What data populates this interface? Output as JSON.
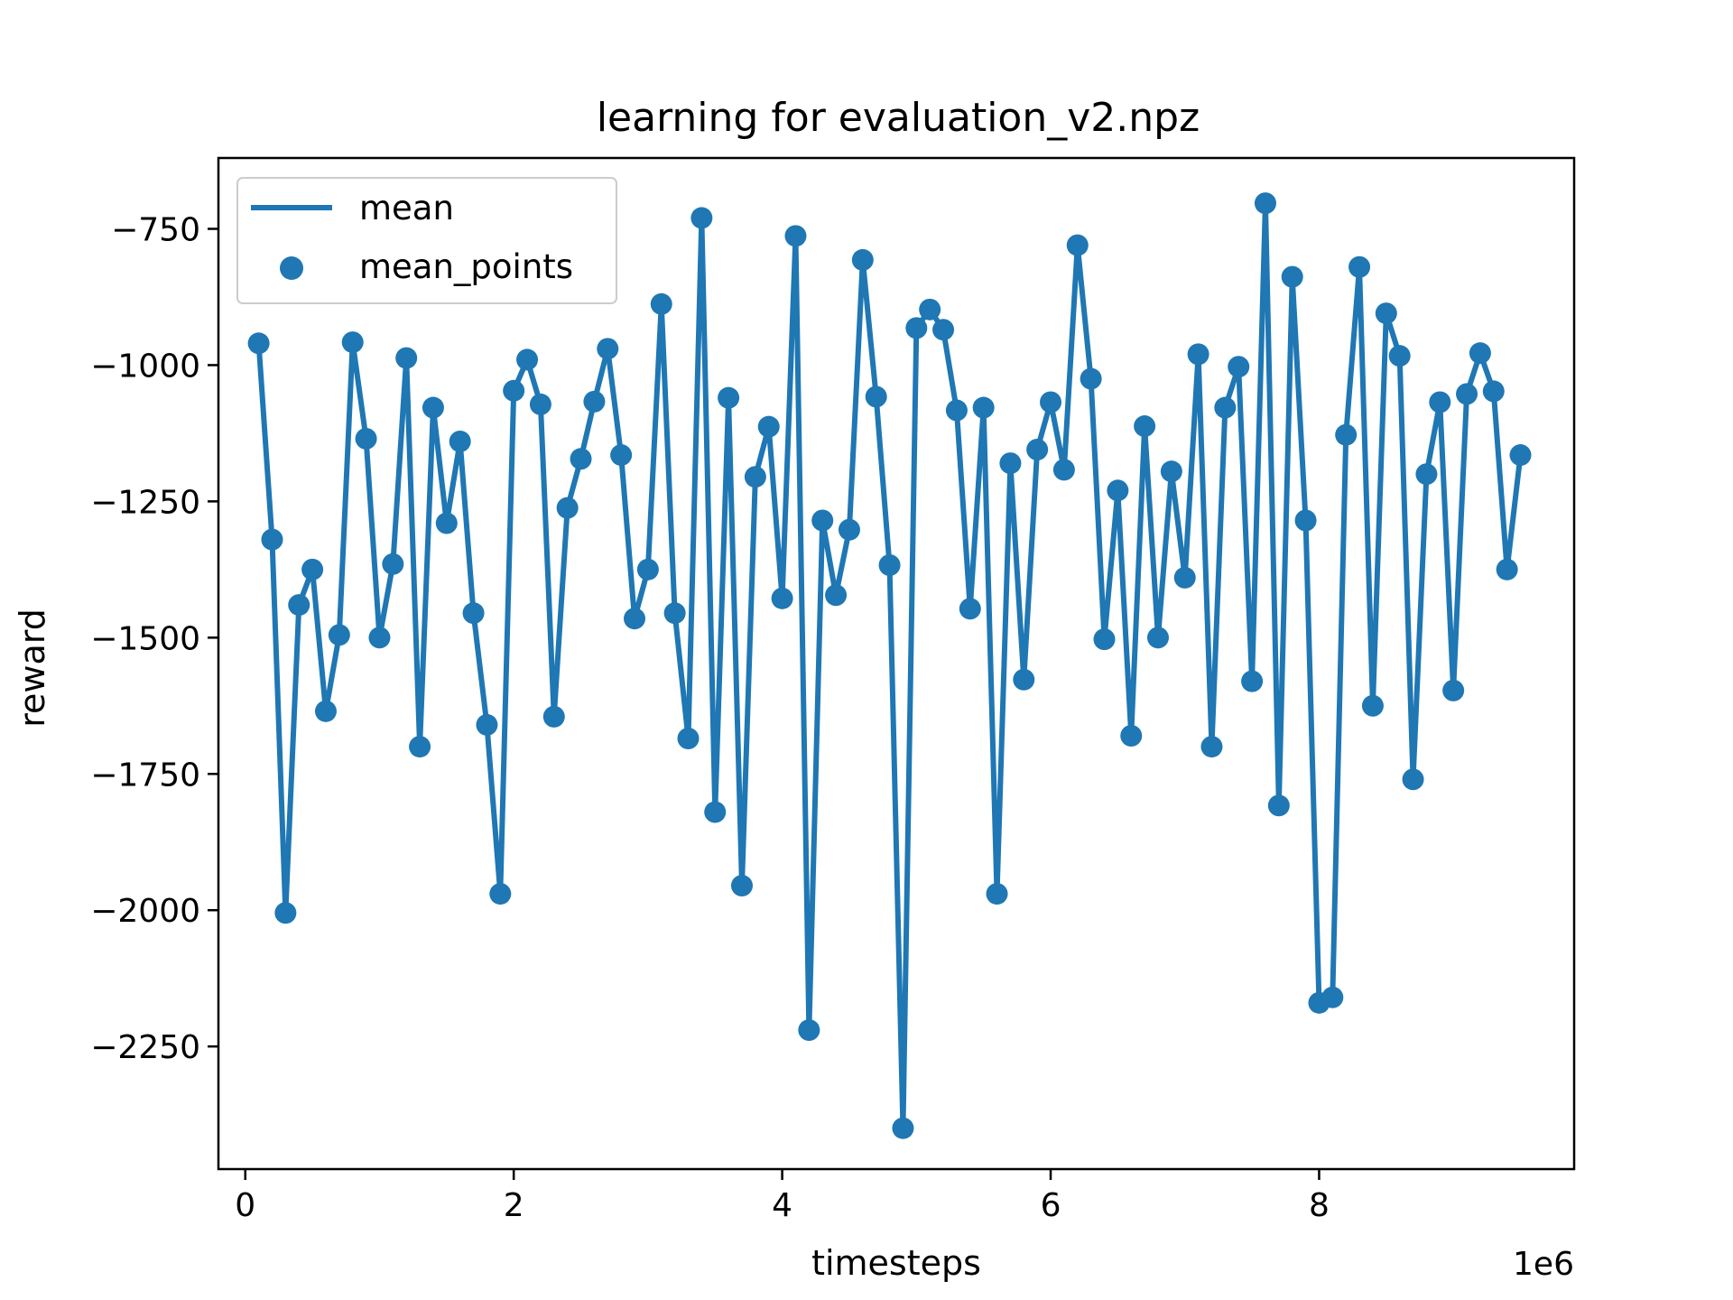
{
  "chart_data": {
    "type": "line",
    "title": "learning for evaluation_v2.npz",
    "xlabel": "timesteps",
    "ylabel": "reward",
    "x_offset_text": "1e6",
    "x_scale": 1000000,
    "xlim": [
      -200000,
      9900000
    ],
    "ylim": [
      -2475,
      -620
    ],
    "x_ticks": [
      0,
      2000000,
      4000000,
      6000000,
      8000000
    ],
    "x_tick_labels": [
      "0",
      "2",
      "4",
      "6",
      "8"
    ],
    "y_ticks": [
      -750,
      -1000,
      -1250,
      -1500,
      -1750,
      -2000,
      -2250
    ],
    "y_tick_labels": [
      "−750",
      "−1000",
      "−1250",
      "−1500",
      "−1750",
      "−2000",
      "−2250"
    ],
    "grid": false,
    "legend_position": "upper-left",
    "series_color": "#1f77b4",
    "legend": [
      {
        "label": "mean",
        "marker": "line"
      },
      {
        "label": "mean_points",
        "marker": "dot"
      }
    ],
    "series": [
      {
        "name": "mean",
        "x": [
          100000,
          200000,
          300000,
          400000,
          500000,
          600000,
          700000,
          800000,
          900000,
          1000000,
          1100000,
          1200000,
          1300000,
          1400000,
          1500000,
          1600000,
          1700000,
          1800000,
          1900000,
          2000000,
          2100000,
          2200000,
          2300000,
          2400000,
          2500000,
          2600000,
          2700000,
          2800000,
          2900000,
          3000000,
          3100000,
          3200000,
          3300000,
          3400000,
          3500000,
          3600000,
          3700000,
          3800000,
          3900000,
          4000000,
          4100000,
          4200000,
          4300000,
          4400000,
          4500000,
          4600000,
          4700000,
          4800000,
          4900000,
          5000000,
          5100000,
          5200000,
          5300000,
          5400000,
          5500000,
          5600000,
          5700000,
          5800000,
          5900000,
          6000000,
          6100000,
          6200000,
          6300000,
          6400000,
          6500000,
          6600000,
          6700000,
          6800000,
          6900000,
          7000000,
          7100000,
          7200000,
          7300000,
          7400000,
          7500000,
          7600000,
          7700000,
          7800000,
          7900000,
          8000000,
          8100000,
          8200000,
          8300000,
          8400000,
          8500000,
          8600000,
          8700000,
          8800000,
          8900000,
          9000000,
          9100000,
          9200000,
          9300000,
          9400000,
          9500000
        ],
        "y": [
          -960,
          -1320,
          -2005,
          -1440,
          -1375,
          -1635,
          -1495,
          -958,
          -1135,
          -1500,
          -1365,
          -987,
          -1700,
          -1078,
          -1290,
          -1140,
          -1455,
          -1660,
          -1970,
          -1047,
          -990,
          -1072,
          -1645,
          -1262,
          -1172,
          -1067,
          -970,
          -1165,
          -1465,
          -1375,
          -888,
          -1455,
          -1685,
          -730,
          -1820,
          -1060,
          -1955,
          -1205,
          -1113,
          -1428,
          -763,
          -2220,
          -1285,
          -1422,
          -1302,
          -807,
          -1058,
          -1367,
          -2400,
          -932,
          -898,
          -935,
          -1083,
          -1447,
          -1078,
          -1970,
          -1180,
          -1577,
          -1155,
          -1068,
          -1192,
          -780,
          -1025,
          -1503,
          -1230,
          -1680,
          -1112,
          -1500,
          -1195,
          -1390,
          -980,
          -1700,
          -1078,
          -1003,
          -1580,
          -703,
          -1808,
          -838,
          -1285,
          -2170,
          -2160,
          -1128,
          -820,
          -1625,
          -905,
          -983,
          -1760,
          -1200,
          -1068,
          -1597,
          -1053,
          -978,
          -1048,
          -1375,
          -1165
        ]
      },
      {
        "name": "mean_points"
      }
    ]
  }
}
